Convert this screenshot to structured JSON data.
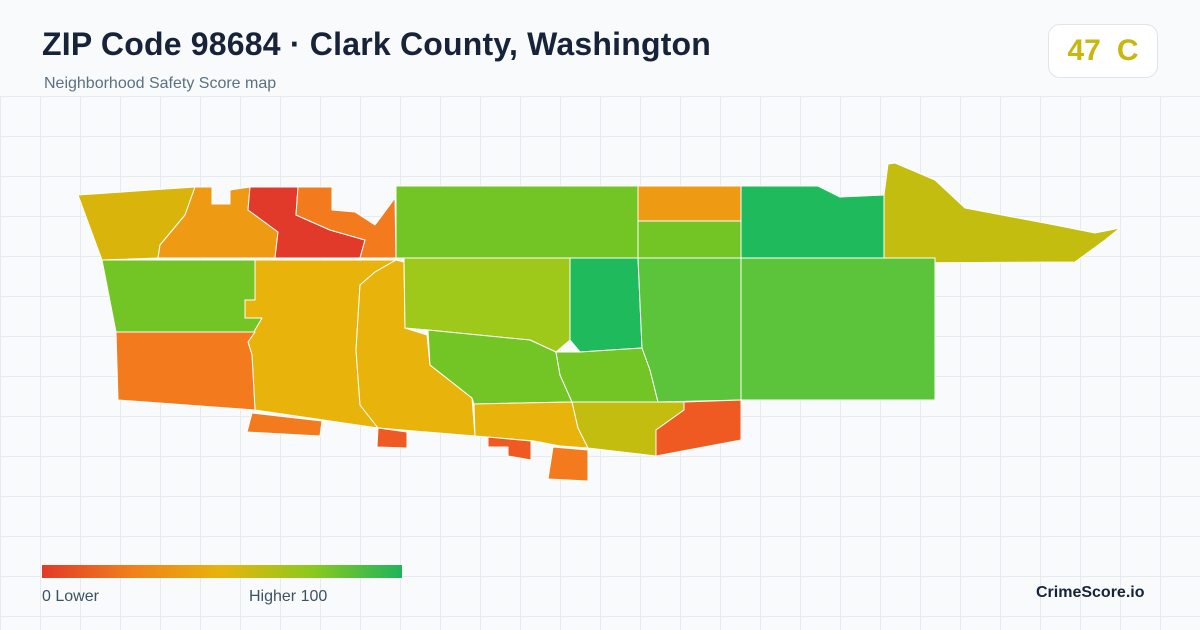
{
  "header": {
    "title": "ZIP Code 98684 · Clark County, Washington",
    "subtitle": "Neighborhood Safety Score map"
  },
  "score": {
    "value": "47",
    "grade": "C",
    "color": "#c9b60e"
  },
  "legend": {
    "low_label": "0  Lower",
    "high_label": "Higher  100",
    "scale_min": 0,
    "scale_max": 100,
    "colors": [
      "#e23a2a",
      "#f0801c",
      "#e8b40c",
      "#8cc91e",
      "#20b45a"
    ]
  },
  "brand": "CrimeScore.io",
  "map": {
    "region_colors": {
      "red": "#e23a2a",
      "red_orange": "#ef5a22",
      "orange": "#f37a1d",
      "amber": "#ee9a12",
      "gold": "#e8b40c",
      "mustard": "#d9b40a",
      "olive": "#c2bd0e",
      "yellow_green": "#9ec81a",
      "lime": "#72c524",
      "green": "#5cc43a",
      "emerald": "#1fba5c"
    }
  }
}
